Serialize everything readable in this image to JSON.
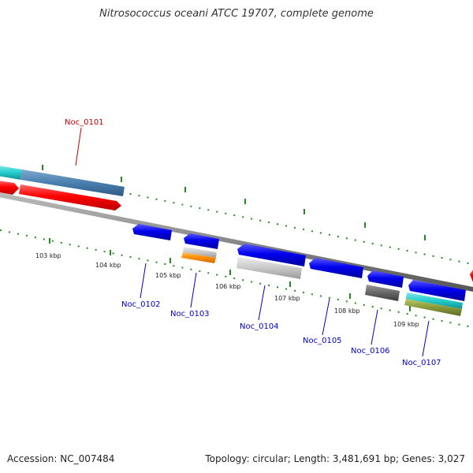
{
  "title": "Nitrosococcus oceani ATCC 19707, complete genome",
  "footer": {
    "accession": "Accession: NC_007484",
    "topology": "Topology: circular; Length: 3,481,691 bp; Genes: 3,027"
  },
  "kbp_labels": [
    "103 kbp",
    "104 kbp",
    "105 kbp",
    "106 kbp",
    "107 kbp",
    "108 kbp",
    "109 kbp"
  ],
  "gene_labels": {
    "noc_0101": "Noc_0101",
    "noc_0102": "Noc_0102",
    "noc_0103": "Noc_0103",
    "noc_0104": "Noc_0104",
    "noc_0105": "Noc_0105",
    "noc_0106": "Noc_0106",
    "noc_0107": "Noc_0107"
  },
  "colors": {
    "forward_strand": "#ff0000",
    "reverse_strand": "#0000ee",
    "cyan_feature": "#22cccc",
    "steelblue_feature": "#4a7fb0",
    "orange_feature": "#ff8c00",
    "olive_feature": "#8a9a3a",
    "gray_feature": "#c8c8c8",
    "darkgray_feature": "#666666",
    "tick_green": "#228b22",
    "backbone": "#888888"
  }
}
